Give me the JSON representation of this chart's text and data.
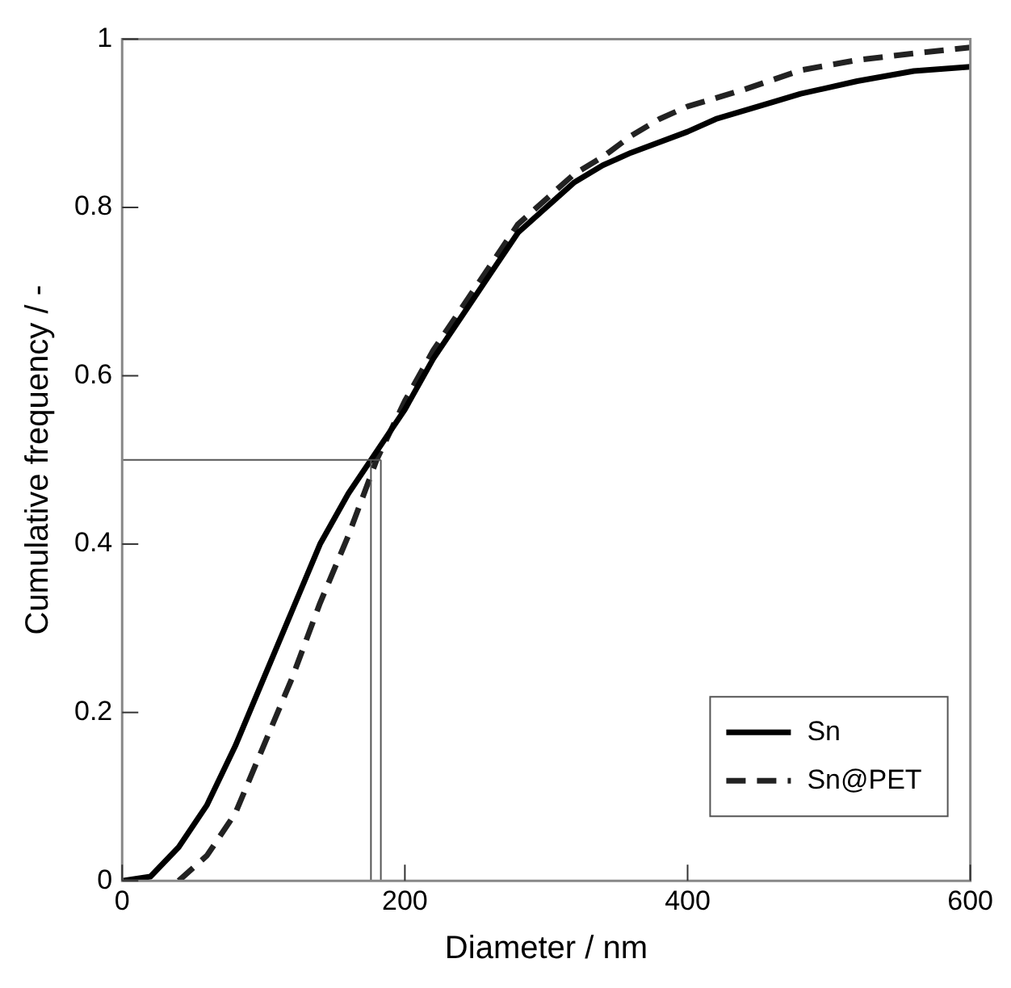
{
  "chart_data": {
    "type": "line",
    "xlabel": "Diameter / nm",
    "ylabel": "Cumulative frequency / -",
    "xlim": [
      0,
      600
    ],
    "xticks": [
      0,
      200,
      400,
      600
    ],
    "ylim": [
      0,
      1
    ],
    "yticks": [
      0,
      0.2,
      0.4,
      0.6,
      0.8,
      1
    ],
    "grid": false,
    "legend": "bottom right",
    "marker": "none",
    "series": [
      {
        "name": "Sn",
        "color": "#000000",
        "line_style": "solid",
        "x": [
          0,
          20,
          40,
          60,
          80,
          100,
          120,
          140,
          160,
          180,
          200,
          220,
          240,
          260,
          280,
          300,
          320,
          340,
          360,
          400,
          420,
          460,
          480,
          520,
          560,
          600
        ],
        "values": [
          0,
          0.005,
          0.04,
          0.09,
          0.16,
          0.24,
          0.32,
          0.4,
          0.46,
          0.51,
          0.56,
          0.62,
          0.67,
          0.72,
          0.77,
          0.8,
          0.83,
          0.85,
          0.865,
          0.89,
          0.905,
          0.925,
          0.935,
          0.95,
          0.962,
          0.967
        ]
      },
      {
        "name": "Sn@PET",
        "color": "#222222",
        "line_style": "dashed",
        "x": [
          40,
          60,
          80,
          100,
          120,
          140,
          160,
          180,
          200,
          220,
          240,
          260,
          280,
          300,
          320,
          340,
          360,
          380,
          400,
          440,
          480,
          520,
          560,
          600
        ],
        "values": [
          0,
          0.03,
          0.08,
          0.16,
          0.24,
          0.33,
          0.41,
          0.5,
          0.57,
          0.63,
          0.68,
          0.73,
          0.78,
          0.81,
          0.84,
          0.86,
          0.885,
          0.905,
          0.92,
          0.94,
          0.963,
          0.975,
          0.983,
          0.99
        ]
      }
    ],
    "ref_lines": [
      {
        "axis": "y",
        "value": 0.5,
        "color": "#555555"
      },
      {
        "axis": "x",
        "value": 176,
        "color": "#555555"
      },
      {
        "axis": "x",
        "value": 183,
        "color": "#555555"
      }
    ]
  }
}
